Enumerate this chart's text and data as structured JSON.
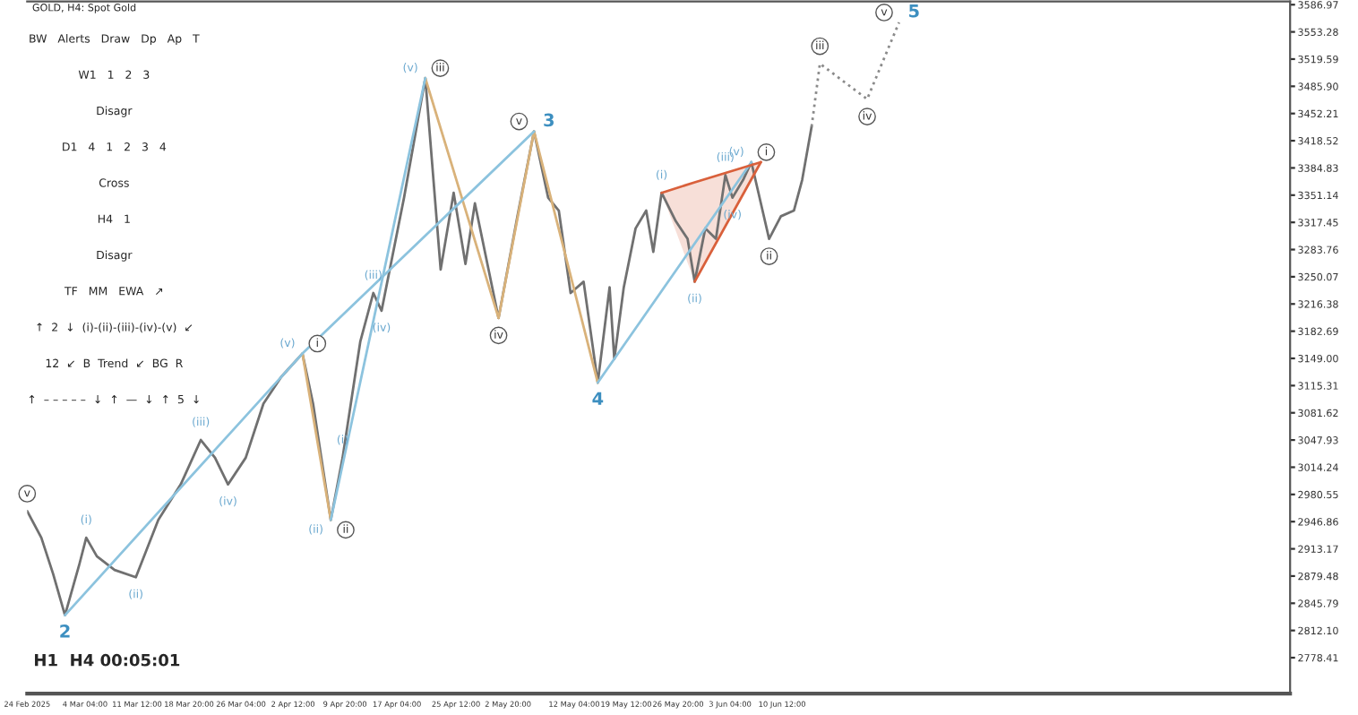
{
  "chart_data": [
    {
      "type": "line",
      "title": "GOLD, H4: Spot Gold",
      "x": [
        "2025-02-24T00:00",
        "2025-02-26T00:00",
        "2025-02-27T16:00",
        "2025-03-01T08:00",
        "2025-03-03T08:00",
        "2025-03-04T08:00",
        "2025-03-05T20:00",
        "2025-03-08T08:00",
        "2025-03-11T08:00",
        "2025-03-14T12:00",
        "2025-03-17T16:00",
        "2025-03-20T12:00",
        "2025-03-22T12:00",
        "2025-03-24T08:00",
        "2025-03-26T20:00",
        "2025-03-29T08:00",
        "2025-03-31T20:00",
        "2025-04-03T20:00",
        "2025-04-05T08:00",
        "2025-04-07T20:00",
        "2025-04-09T12:00",
        "2025-04-12T00:00",
        "2025-04-13T20:00",
        "2025-04-15T00:00",
        "2025-04-18T04:00",
        "2025-04-21T04:00",
        "2025-04-23T08:00",
        "2025-04-25T04:00",
        "2025-04-26T20:00",
        "2025-04-28T04:00",
        "2025-05-01T12:00",
        "2025-05-04T04:00",
        "2025-05-06T12:00",
        "2025-05-08T12:00",
        "2025-05-10T00:00",
        "2025-05-11T16:00",
        "2025-05-13T12:00",
        "2025-05-15T12:00",
        "2025-05-17T04:00",
        "2025-05-17T20:00",
        "2025-05-19T04:00",
        "2025-05-20T20:00",
        "2025-05-22T08:00",
        "2025-05-23T08:00",
        "2025-05-24T12:00",
        "2025-05-26T12:00",
        "2025-05-28T04:00",
        "2025-05-29T04:00",
        "2025-05-30T16:00",
        "2025-06-01T04:00",
        "2025-06-02T12:00",
        "2025-06-03T12:00",
        "2025-06-05T00:00",
        "2025-06-06T04:00",
        "2025-06-07T04:00",
        "2025-06-08T16:00",
        "2025-06-10T08:00",
        "2025-06-12T04:00",
        "2025-06-13T08:00",
        "2025-06-14T16:00"
      ],
      "series": [
        {
          "color": "#707070",
          "values": [
            2960,
            2927,
            2882,
            2831,
            2893,
            2927,
            2904,
            2887,
            2878,
            2949,
            2993,
            3048,
            3026,
            2993,
            3026,
            3093,
            3126,
            3155,
            3093,
            2949,
            3026,
            3170,
            3230,
            3208,
            3348,
            3496,
            3259,
            3354,
            3266,
            3341,
            3199,
            3325,
            3430,
            3348,
            3332,
            3230,
            3244,
            3119,
            3237,
            3148,
            3237,
            3310,
            3332,
            3281,
            3354,
            3319,
            3297,
            3244,
            3310,
            3297,
            3376,
            3348,
            3370,
            3392,
            3354,
            3297,
            3325,
            3332,
            3370,
            3436
          ]
        },
        {
          "color": "#d9b27a",
          "x": [
            "2025-04-03T20:00",
            "2025-04-07T20:00"
          ],
          "values": [
            3155,
            2949
          ]
        },
        {
          "color": "#d9b27a",
          "x": [
            "2025-04-21T04:00",
            "2025-05-01T12:00",
            "2025-05-06T12:00",
            "2025-05-15T12:00"
          ],
          "values": [
            3496,
            3199,
            3430,
            3119
          ]
        },
        {
          "color": "#8cc3de",
          "x": [
            "2025-03-01T08:00",
            "2025-04-03T20:00",
            "2025-05-06T12:00"
          ],
          "values": [
            2831,
            3155,
            3430
          ]
        },
        {
          "color": "#8cc3de",
          "x": [
            "2025-04-07T20:00",
            "2025-04-21T04:00"
          ],
          "values": [
            2949,
            3496
          ]
        },
        {
          "color": "#8cc3de",
          "x": [
            "2025-05-15T12:00",
            "2025-06-06T04:00"
          ],
          "values": [
            3119,
            3392
          ]
        },
        {
          "color": "#d9603b",
          "x": [
            "2025-05-24T12:00",
            "2025-05-29T04:00",
            "2025-06-07T12:00"
          ],
          "values": [
            3354,
            3367,
            3392
          ],
          "lower": [
            3354,
            3244,
            3392
          ],
          "upper": [
            3354,
            3367,
            3392
          ]
        },
        {
          "color": "#d9603b",
          "x": [
            "2025-05-29T04:00",
            "2025-06-07T12:00"
          ],
          "values": [
            3244,
            3392
          ]
        },
        {
          "color": "#8a8a8a",
          "line_style": "dotted",
          "x": [
            "2025-06-14T16:00",
            "2025-06-15T20:00",
            "2025-06-22T12:00",
            "2025-06-27T00:00"
          ],
          "values": [
            3436,
            3514,
            3470,
            3565
          ]
        }
      ],
      "xlim": [
        "2025-02-24T00:00",
        "2025-08-21T04:00"
      ],
      "xticks": [
        {
          "value": "2025-02-24T00:00",
          "label": "24 Feb 2025"
        },
        {
          "value": "2025-03-04T04:00",
          "label": "4 Mar 04:00"
        },
        {
          "value": "2025-03-11T12:00",
          "label": "11 Mar 12:00"
        },
        {
          "value": "2025-03-18T20:00",
          "label": "18 Mar 20:00"
        },
        {
          "value": "2025-03-26T04:00",
          "label": "26 Mar 04:00"
        },
        {
          "value": "2025-04-02T12:00",
          "label": "2 Apr 12:00"
        },
        {
          "value": "2025-04-09T20:00",
          "label": "9 Apr 20:00"
        },
        {
          "value": "2025-04-17T04:00",
          "label": "17 Apr 04:00"
        },
        {
          "value": "2025-04-25T12:00",
          "label": "25 Apr 12:00"
        },
        {
          "value": "2025-05-02T20:00",
          "label": "2 May 20:00"
        },
        {
          "value": "2025-05-12T04:00",
          "label": "12 May 04:00"
        },
        {
          "value": "2025-05-19T12:00",
          "label": "19 May 12:00"
        },
        {
          "value": "2025-05-26T20:00",
          "label": "26 May 20:00"
        },
        {
          "value": "2025-06-03T04:00",
          "label": "3 Jun 04:00"
        },
        {
          "value": "2025-06-10T12:00",
          "label": "10 Jun 12:00"
        }
      ],
      "ylim": [
        2734,
        3591
      ],
      "yticks": [
        {
          "value": 3586.97,
          "label": "3586.97"
        },
        {
          "value": 3553.28,
          "label": "3553.28"
        },
        {
          "value": 3519.59,
          "label": "3519.59"
        },
        {
          "value": 3485.9,
          "label": "3485.90"
        },
        {
          "value": 3452.21,
          "label": "3452.21"
        },
        {
          "value": 3418.52,
          "label": "3418.52"
        },
        {
          "value": 3384.83,
          "label": "3384.83"
        },
        {
          "value": 3351.14,
          "label": "3351.14"
        },
        {
          "value": 3317.45,
          "label": "3317.45"
        },
        {
          "value": 3283.76,
          "label": "3283.76"
        },
        {
          "value": 3250.07,
          "label": "3250.07"
        },
        {
          "value": 3216.38,
          "label": "3216.38"
        },
        {
          "value": 3182.69,
          "label": "3182.69"
        },
        {
          "value": 3149.0,
          "label": "3149.00"
        },
        {
          "value": 3115.31,
          "label": "3115.31"
        },
        {
          "value": 3081.62,
          "label": "3081.62"
        },
        {
          "value": 3047.93,
          "label": "3047.93"
        },
        {
          "value": 3014.24,
          "label": "3014.24"
        },
        {
          "value": 2980.55,
          "label": "2980.55"
        },
        {
          "value": 2946.86,
          "label": "2946.86"
        },
        {
          "value": 2913.17,
          "label": "2913.17"
        },
        {
          "value": 2879.48,
          "label": "2879.48"
        },
        {
          "value": 2845.79,
          "label": "2845.79"
        },
        {
          "value": 2812.1,
          "label": "2812.10"
        },
        {
          "value": 2778.41,
          "label": "2778.41"
        }
      ],
      "grid": false,
      "legend": false,
      "annotations": [
        "H1  H4 00:05:01",
        {
          "text": "v",
          "x": "2025-02-24T00:00",
          "y": 2960
        },
        {
          "text": "2",
          "x": "2025-03-01T08:00",
          "y": 2831
        },
        {
          "text": "(i)",
          "x": "2025-03-04T08:00",
          "y": 2927
        },
        {
          "text": "(ii)",
          "x": "2025-03-11T08:00",
          "y": 2878
        },
        {
          "text": "(iii)",
          "x": "2025-03-20T12:00",
          "y": 3048
        },
        {
          "text": "(iv)",
          "x": "2025-03-24T08:00",
          "y": 2993
        },
        {
          "text": "(v)",
          "x": "2025-04-03T20:00",
          "y": 3155
        },
        {
          "text": "i",
          "x": "2025-04-03T20:00",
          "y": 3155
        },
        {
          "text": "(ii)",
          "x": "2025-04-07T20:00",
          "y": 2949
        },
        {
          "text": "ii",
          "x": "2025-04-07T20:00",
          "y": 2949
        },
        {
          "text": "(i)",
          "x": "2025-04-09T12:00",
          "y": 3026
        },
        {
          "text": "(iii)",
          "x": "2025-04-13T20:00",
          "y": 3230
        },
        {
          "text": "(iv)",
          "x": "2025-04-15T00:00",
          "y": 3208
        },
        {
          "text": "(v)",
          "x": "2025-04-21T04:00",
          "y": 3496
        },
        {
          "text": "iii",
          "x": "2025-04-21T04:00",
          "y": 3496
        },
        {
          "text": "iv",
          "x": "2025-05-01T12:00",
          "y": 3199
        },
        {
          "text": "v",
          "x": "2025-05-06T12:00",
          "y": 3430
        },
        {
          "text": "3",
          "x": "2025-05-06T12:00",
          "y": 3430
        },
        {
          "text": "4",
          "x": "2025-05-15T12:00",
          "y": 3119
        },
        {
          "text": "(i)",
          "x": "2025-05-24T12:00",
          "y": 3354
        },
        {
          "text": "(ii)",
          "x": "2025-05-29T04:00",
          "y": 3244
        },
        {
          "text": "(iii)",
          "x": "2025-06-02T12:00",
          "y": 3376
        },
        {
          "text": "(iv)",
          "x": "2025-06-03T12:00",
          "y": 3348
        },
        {
          "text": "(v)",
          "x": "2025-06-06T04:00",
          "y": 3392
        },
        {
          "text": "i",
          "x": "2025-06-06T04:00",
          "y": 3392
        },
        {
          "text": "ii",
          "x": "2025-06-08T16:00",
          "y": 3297
        },
        {
          "text": "iii",
          "x": "2025-06-15T20:00",
          "y": 3514
        },
        {
          "text": "iv",
          "x": "2025-06-22T12:00",
          "y": 3470
        },
        {
          "text": "v",
          "x": "2025-06-27T00:00",
          "y": 3565
        },
        {
          "text": "5",
          "x": "2025-06-27T00:00",
          "y": 3565
        }
      ]
    },
    {
      "type": "other",
      "annotations": [
        "BW   Alerts   Draw   Dp   Ap   T",
        "W1   1   2   3",
        "Disagr",
        "D1   4   1   2   3   4",
        "Cross",
        "H4   1",
        "Disagr",
        "TF   MM   EWA   ↗",
        "↑  2  ↓  (i)-(ii)-(iii)-(iv)-(v)  ↙",
        "12  ↙  B  Trend  ↙  BG  R",
        "↑  – – – – –  ↓  ↑  —  ↓  ↑  5  ↓"
      ]
    }
  ]
}
